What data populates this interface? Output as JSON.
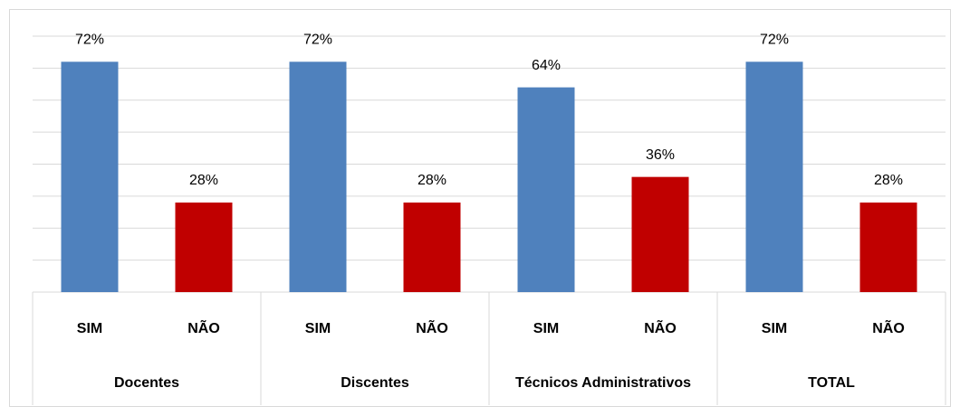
{
  "chart_data": {
    "type": "bar",
    "groups": [
      "Docentes",
      "Discentes",
      "Técnicos Administrativos",
      "TOTAL"
    ],
    "categories": [
      "SIM",
      "NÃO",
      "SIM",
      "NÃO",
      "SIM",
      "NÃO",
      "SIM",
      "NÃO"
    ],
    "values": [
      72,
      28,
      72,
      28,
      64,
      36,
      72,
      28
    ],
    "value_labels": [
      "72%",
      "28%",
      "72%",
      "28%",
      "64%",
      "36%",
      "72%",
      "28%"
    ],
    "colors": [
      "#4f81bd",
      "#c00000",
      "#4f81bd",
      "#c00000",
      "#4f81bd",
      "#c00000",
      "#4f81bd",
      "#c00000"
    ],
    "ylim": [
      0,
      80
    ],
    "yticks": [
      0,
      10,
      20,
      30,
      40,
      50,
      60,
      70,
      80
    ],
    "grid": true
  }
}
